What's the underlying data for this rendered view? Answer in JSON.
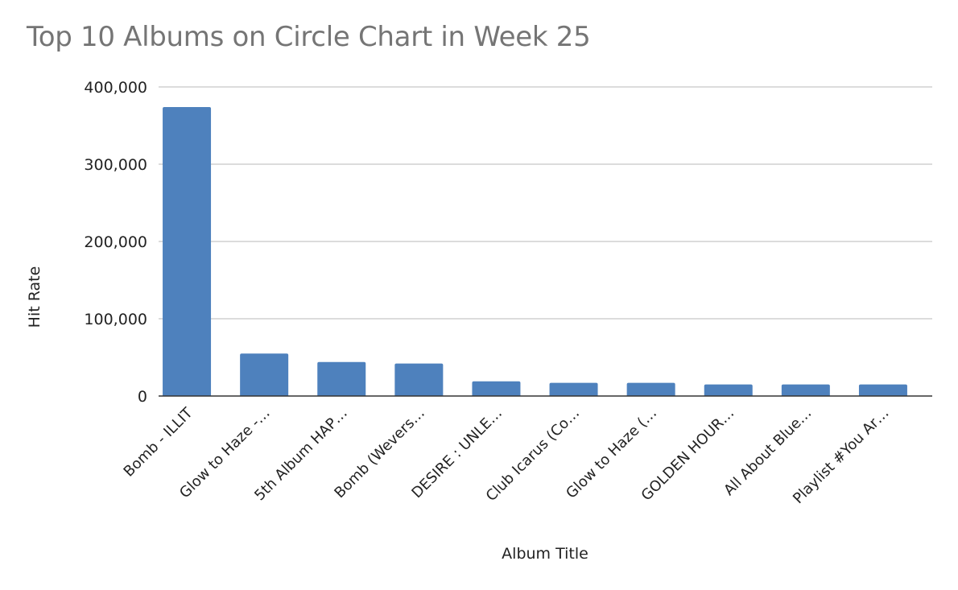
{
  "chart_data": {
    "type": "bar",
    "title": "Top 10 Albums on Circle Chart in Week 25",
    "xlabel": "Album Title",
    "ylabel": "Hit Rate",
    "ylim": [
      0,
      400000
    ],
    "yticks": [
      "0",
      "100,000",
      "200,000",
      "300,000",
      "400,000"
    ],
    "ytick_values": [
      0,
      100000,
      200000,
      300000,
      400000
    ],
    "grid": true,
    "color": "#4e81bd",
    "categories": [
      "Bomb - ILLIT",
      "Glow to Haze -…",
      "5th Album HAP…",
      "Bomb (Wevers…",
      "DESIRE : UNLE…",
      "Club Icarus (Co…",
      "Glow to Haze (…",
      "GOLDEN HOUR…",
      "All About Blue…",
      "Playlist #You Ar…"
    ],
    "values": [
      374000,
      55000,
      44000,
      42000,
      19000,
      17000,
      17000,
      15000,
      15000,
      15000
    ]
  }
}
